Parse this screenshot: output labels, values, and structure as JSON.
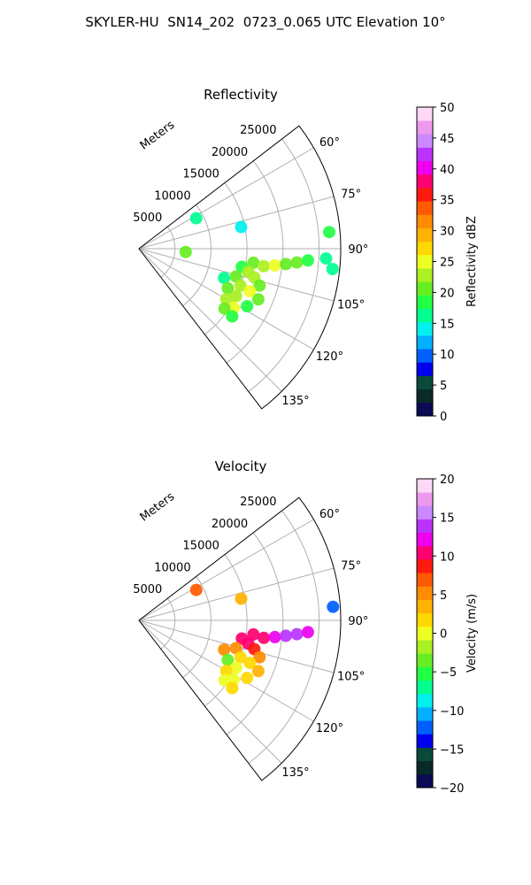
{
  "figure_title": "SKYLER-HU  SN14_202  0723_0.065 UTC Elevation 10°",
  "chart_data": [
    {
      "type": "heatmap",
      "title": "Reflectivity",
      "polar": true,
      "range_label": "Meters",
      "range_ticks": [
        5000,
        10000,
        15000,
        20000,
        25000
      ],
      "range_tick_labels": [
        "5000",
        "10000",
        "15000",
        "20000",
        "25000"
      ],
      "range_max": 28000,
      "azimuth_min": 52.5,
      "azimuth_max": 142.5,
      "azimuth_ticks": [
        60,
        75,
        90,
        105,
        120,
        135
      ],
      "azimuth_tick_labels": [
        "60°",
        "75°",
        "90°",
        "105°",
        "120°",
        "135°"
      ],
      "grid": true,
      "colorbar": {
        "label": "Reflectivity dBZ",
        "min": 0,
        "max": 50,
        "ticks": [
          0,
          5,
          10,
          15,
          20,
          25,
          30,
          35,
          40,
          45,
          50
        ],
        "tick_labels": [
          "0",
          "5",
          "10",
          "15",
          "20",
          "25",
          "30",
          "35",
          "40",
          "45",
          "50"
        ],
        "colors": [
          "#0a0a55",
          "#0a2a2a",
          "#0a4a3a",
          "#0000ee",
          "#0060ff",
          "#00b0ff",
          "#00f0ee",
          "#00ff90",
          "#22ff44",
          "#66ee22",
          "#aaf022",
          "#eeff22",
          "#ffd800",
          "#ffb200",
          "#ff8c00",
          "#ff5a00",
          "#ff1a10",
          "#ff0070",
          "#ee00ee",
          "#bb33ff",
          "#cc88ff",
          "#ee99ee",
          "#ffd8f8"
        ]
      },
      "echo_cells": [
        {
          "range": 9000,
          "az": 62,
          "value": 16
        },
        {
          "range": 6500,
          "az": 94,
          "value": 20
        },
        {
          "range": 14500,
          "az": 78,
          "value": 14
        },
        {
          "range": 26500,
          "az": 85,
          "value": 18
        },
        {
          "range": 16000,
          "az": 97,
          "value": 20
        },
        {
          "range": 17500,
          "az": 98,
          "value": 22
        },
        {
          "range": 19000,
          "az": 97,
          "value": 24
        },
        {
          "range": 20500,
          "az": 96,
          "value": 21
        },
        {
          "range": 22000,
          "az": 95,
          "value": 20
        },
        {
          "range": 23500,
          "az": 94,
          "value": 19
        },
        {
          "range": 26000,
          "az": 93,
          "value": 17
        },
        {
          "range": 27000,
          "az": 96,
          "value": 16
        },
        {
          "range": 14500,
          "az": 100,
          "value": 19
        },
        {
          "range": 15500,
          "az": 102,
          "value": 22
        },
        {
          "range": 16500,
          "az": 104,
          "value": 23
        },
        {
          "range": 17500,
          "az": 107,
          "value": 21
        },
        {
          "range": 14000,
          "az": 106,
          "value": 20
        },
        {
          "range": 12500,
          "az": 109,
          "value": 17
        },
        {
          "range": 15000,
          "az": 110,
          "value": 22
        },
        {
          "range": 16500,
          "az": 111,
          "value": 24
        },
        {
          "range": 18000,
          "az": 113,
          "value": 20
        },
        {
          "range": 13500,
          "az": 114,
          "value": 21
        },
        {
          "range": 15000,
          "az": 116,
          "value": 23
        },
        {
          "range": 17000,
          "az": 118,
          "value": 19
        },
        {
          "range": 14000,
          "az": 120,
          "value": 22
        },
        {
          "range": 15500,
          "az": 122,
          "value": 24
        },
        {
          "range": 14500,
          "az": 125,
          "value": 21
        },
        {
          "range": 16000,
          "az": 126,
          "value": 19
        }
      ]
    },
    {
      "type": "heatmap",
      "title": "Velocity",
      "polar": true,
      "range_label": "Meters",
      "range_ticks": [
        5000,
        10000,
        15000,
        20000,
        25000
      ],
      "range_tick_labels": [
        "5000",
        "10000",
        "15000",
        "20000",
        "25000"
      ],
      "range_max": 28000,
      "azimuth_min": 52.5,
      "azimuth_max": 142.5,
      "azimuth_ticks": [
        60,
        75,
        90,
        105,
        120,
        135
      ],
      "azimuth_tick_labels": [
        "60°",
        "75°",
        "90°",
        "105°",
        "120°",
        "135°"
      ],
      "grid": true,
      "colorbar": {
        "label": "Velocity (m/s)",
        "min": -20,
        "max": 20,
        "ticks": [
          -20,
          -15,
          -10,
          -5,
          0,
          5,
          10,
          15,
          20
        ],
        "tick_labels": [
          "−20",
          "−15",
          "−10",
          "−5",
          "0",
          "5",
          "10",
          "15",
          "20"
        ],
        "colors": [
          "#0a0a55",
          "#0a2a2a",
          "#0a4a3a",
          "#0000ee",
          "#0060ff",
          "#00b0ff",
          "#00f0ee",
          "#00ff90",
          "#22ff44",
          "#66ee22",
          "#aaf022",
          "#eeff22",
          "#ffd800",
          "#ffb200",
          "#ff8c00",
          "#ff5a00",
          "#ff1a10",
          "#ff0070",
          "#ee00ee",
          "#bb33ff",
          "#cc88ff",
          "#ee99ee",
          "#ffd8f8"
        ]
      },
      "echo_cells": [
        {
          "range": 9000,
          "az": 62,
          "value": 7
        },
        {
          "range": 14500,
          "az": 78,
          "value": 3
        },
        {
          "range": 27000,
          "az": 86,
          "value": -12
        },
        {
          "range": 16000,
          "az": 97,
          "value": 10
        },
        {
          "range": 17500,
          "az": 98,
          "value": 11
        },
        {
          "range": 19000,
          "az": 97,
          "value": 13
        },
        {
          "range": 20500,
          "az": 96,
          "value": 14
        },
        {
          "range": 22000,
          "az": 95,
          "value": 14
        },
        {
          "range": 23500,
          "az": 94,
          "value": 13
        },
        {
          "range": 14500,
          "az": 100,
          "value": 10
        },
        {
          "range": 15500,
          "az": 102,
          "value": 11
        },
        {
          "range": 16500,
          "az": 104,
          "value": 8
        },
        {
          "range": 17500,
          "az": 107,
          "value": 6
        },
        {
          "range": 14000,
          "az": 106,
          "value": 6
        },
        {
          "range": 12500,
          "az": 109,
          "value": 5
        },
        {
          "range": 15000,
          "az": 110,
          "value": 2
        },
        {
          "range": 16500,
          "az": 111,
          "value": 1
        },
        {
          "range": 18000,
          "az": 113,
          "value": 3
        },
        {
          "range": 13500,
          "az": 114,
          "value": -3
        },
        {
          "range": 15000,
          "az": 116,
          "value": 0
        },
        {
          "range": 17000,
          "az": 118,
          "value": 2
        },
        {
          "range": 14000,
          "az": 120,
          "value": 1
        },
        {
          "range": 15500,
          "az": 122,
          "value": 0
        },
        {
          "range": 14500,
          "az": 125,
          "value": 0
        },
        {
          "range": 16000,
          "az": 126,
          "value": 1
        }
      ]
    }
  ]
}
